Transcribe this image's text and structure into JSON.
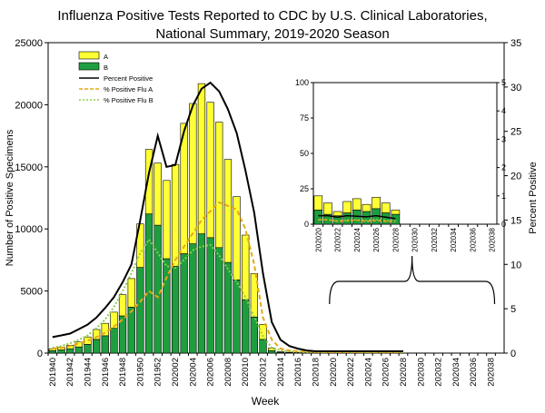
{
  "chart_data": {
    "type": "bar",
    "title_line1": "Influenza Positive Tests Reported to CDC by U.S. Clinical Laboratories,",
    "title_line2": "National Summary,  2019-2020 Season",
    "xlabel": "Week",
    "ylabel": "Number of Positive Specimens",
    "y2label": "Percent Positive",
    "ylim": [
      0,
      25000
    ],
    "yticks": [
      "0",
      "5000",
      "10000",
      "15000",
      "20000",
      "25000"
    ],
    "y2lim": [
      0,
      35
    ],
    "y2ticks": [
      "0",
      "5",
      "10",
      "15",
      "20",
      "25",
      "30",
      "35"
    ],
    "stacked": true,
    "grid": false,
    "legend_position": "top-left",
    "colors": {
      "flu_a": "#ffff33",
      "flu_b": "#1e9e3e",
      "percent_positive": "#000000",
      "pct_flu_a": "#e6a817",
      "pct_flu_b": "#8fce4a"
    },
    "weeks": [
      "201940",
      "201941",
      "201942",
      "201943",
      "201944",
      "201945",
      "201946",
      "201947",
      "201948",
      "201949",
      "201950",
      "201951",
      "201952",
      "202001",
      "202002",
      "202003",
      "202004",
      "202005",
      "202006",
      "202007",
      "202008",
      "202009",
      "202010",
      "202011",
      "202012",
      "202013",
      "202014",
      "202015",
      "202016",
      "202017",
      "202018",
      "202019",
      "202020",
      "202021",
      "202022",
      "202023",
      "202024",
      "202025",
      "202026",
      "202027",
      "202028",
      "202029",
      "202030",
      "202031",
      "202032",
      "202033",
      "202034",
      "202035",
      "202036",
      "202037",
      "202038",
      "202039"
    ],
    "week_ticks": [
      "201940",
      "201942",
      "201944",
      "201946",
      "201948",
      "201950",
      "201952",
      "202002",
      "202004",
      "202006",
      "202008",
      "202010",
      "202012",
      "202014",
      "202016",
      "202018",
      "202020",
      "202022",
      "202024",
      "202026",
      "202028",
      "202030",
      "202032",
      "202034",
      "202036",
      "202038"
    ],
    "series": [
      {
        "name": "A",
        "values": [
          150,
          200,
          280,
          400,
          600,
          800,
          1000,
          1300,
          1700,
          2300,
          3500,
          5200,
          5000,
          6300,
          8200,
          10500,
          11300,
          12100,
          10900,
          10100,
          8300,
          6700,
          5200,
          3500,
          1200,
          200,
          50,
          30,
          20,
          15,
          12,
          10,
          10,
          10,
          8,
          8,
          8,
          10,
          8,
          8,
          5,
          0,
          0,
          0,
          0,
          0,
          0,
          0,
          0,
          0,
          0,
          0
        ]
      },
      {
        "name": "B",
        "values": [
          200,
          250,
          350,
          500,
          700,
          1100,
          1400,
          2000,
          3000,
          3700,
          6900,
          11200,
          10300,
          7600,
          7000,
          8000,
          8800,
          9600,
          9300,
          8500,
          7300,
          5900,
          4300,
          2900,
          1100,
          200,
          60,
          40,
          30,
          20,
          14,
          12,
          8,
          10,
          8,
          10,
          8,
          10,
          8,
          6,
          4,
          0,
          0,
          0,
          0,
          0,
          0,
          0,
          0,
          0,
          0,
          0
        ]
      },
      {
        "name": "Percent Positive",
        "values": [
          1.8,
          2.0,
          2.2,
          2.7,
          3.2,
          4.0,
          5.1,
          6.3,
          8.0,
          10.0,
          15.0,
          20.3,
          24.5,
          21.0,
          21.2,
          25.0,
          27.9,
          29.8,
          30.5,
          29.5,
          27.5,
          24.8,
          20.6,
          15.8,
          9.0,
          3.5,
          1.5,
          0.8,
          0.5,
          0.3,
          0.2,
          0.2,
          0.2,
          0.2,
          0.2,
          0.2,
          0.2,
          0.2,
          0.2,
          0.2,
          0.2,
          null,
          null,
          null,
          null,
          null,
          null,
          null,
          null,
          null,
          null,
          null
        ]
      },
      {
        "name": "% Positive Flu A",
        "values": [
          0.5,
          0.6,
          0.8,
          1.1,
          1.4,
          1.8,
          2.3,
          3.0,
          3.8,
          4.7,
          5.8,
          7.0,
          6.3,
          8.5,
          10.5,
          12.0,
          13.5,
          15.0,
          16.0,
          17.0,
          16.6,
          16.2,
          14.0,
          10.0,
          4.0,
          1.5,
          0.5,
          0.3,
          0.2,
          0.15,
          0.12,
          0.1,
          0.1,
          0.1,
          0.1,
          0.1,
          0.1,
          0.1,
          0.1,
          0.1,
          0.1,
          null,
          null,
          null,
          null,
          null,
          null,
          null,
          null,
          null,
          null,
          null
        ]
      },
      {
        "name": "% Positive Flu B",
        "values": [
          0.6,
          0.8,
          1.1,
          1.5,
          2.0,
          2.8,
          3.8,
          5.2,
          7.0,
          9.0,
          11.3,
          12.8,
          11.3,
          9.8,
          9.6,
          10.5,
          11.6,
          12.0,
          12.2,
          11.0,
          9.5,
          8.0,
          6.3,
          4.1,
          1.9,
          0.6,
          0.3,
          0.2,
          0.15,
          0.1,
          0.1,
          0.1,
          0.1,
          0.1,
          0.1,
          0.1,
          0.1,
          0.1,
          0.1,
          0.1,
          0.1,
          null,
          null,
          null,
          null,
          null,
          null,
          null,
          null,
          null,
          null,
          null
        ]
      }
    ],
    "inset": {
      "ylim": [
        0,
        100
      ],
      "yticks": [
        "0",
        "25",
        "50",
        "75",
        "100"
      ],
      "y2lim": [
        0,
        5
      ],
      "y2ticks": [
        "0",
        "1",
        "2",
        "3",
        "4",
        "5"
      ],
      "weeks": [
        "202020",
        "202021",
        "202022",
        "202023",
        "202024",
        "202025",
        "202026",
        "202027",
        "202028",
        "202029",
        "202030",
        "202031",
        "202032",
        "202033",
        "202034",
        "202035",
        "202036",
        "202037",
        "202038"
      ],
      "week_ticks": [
        "202020",
        "202022",
        "202024",
        "202026",
        "202028",
        "202030",
        "202032",
        "202034",
        "202036",
        "202038"
      ],
      "series": [
        {
          "name": "A",
          "values": [
            10,
            8,
            3,
            8,
            8,
            5,
            8,
            7,
            3,
            null,
            null,
            null,
            null,
            null,
            null,
            null,
            null,
            null,
            null
          ]
        },
        {
          "name": "B",
          "values": [
            10,
            7,
            6,
            8,
            10,
            9,
            11,
            8,
            7,
            null,
            null,
            null,
            null,
            null,
            null,
            null,
            null,
            null,
            null
          ]
        },
        {
          "name": "Percent Positive",
          "values": [
            0.3,
            0.3,
            0.25,
            0.3,
            0.28,
            0.26,
            0.3,
            0.25,
            0.2,
            null,
            null,
            null,
            null,
            null,
            null,
            null,
            null,
            null,
            null
          ]
        },
        {
          "name": "% Positive Flu A",
          "values": [
            0.15,
            0.16,
            0.1,
            0.12,
            0.14,
            0.1,
            0.13,
            0.1,
            0.1,
            null,
            null,
            null,
            null,
            null,
            null,
            null,
            null,
            null,
            null
          ]
        },
        {
          "name": "% Positive Flu B",
          "values": [
            0.15,
            0.16,
            0.12,
            0.15,
            0.16,
            0.14,
            0.17,
            0.14,
            0.12,
            null,
            null,
            null,
            null,
            null,
            null,
            null,
            null,
            null,
            null
          ]
        }
      ]
    }
  }
}
